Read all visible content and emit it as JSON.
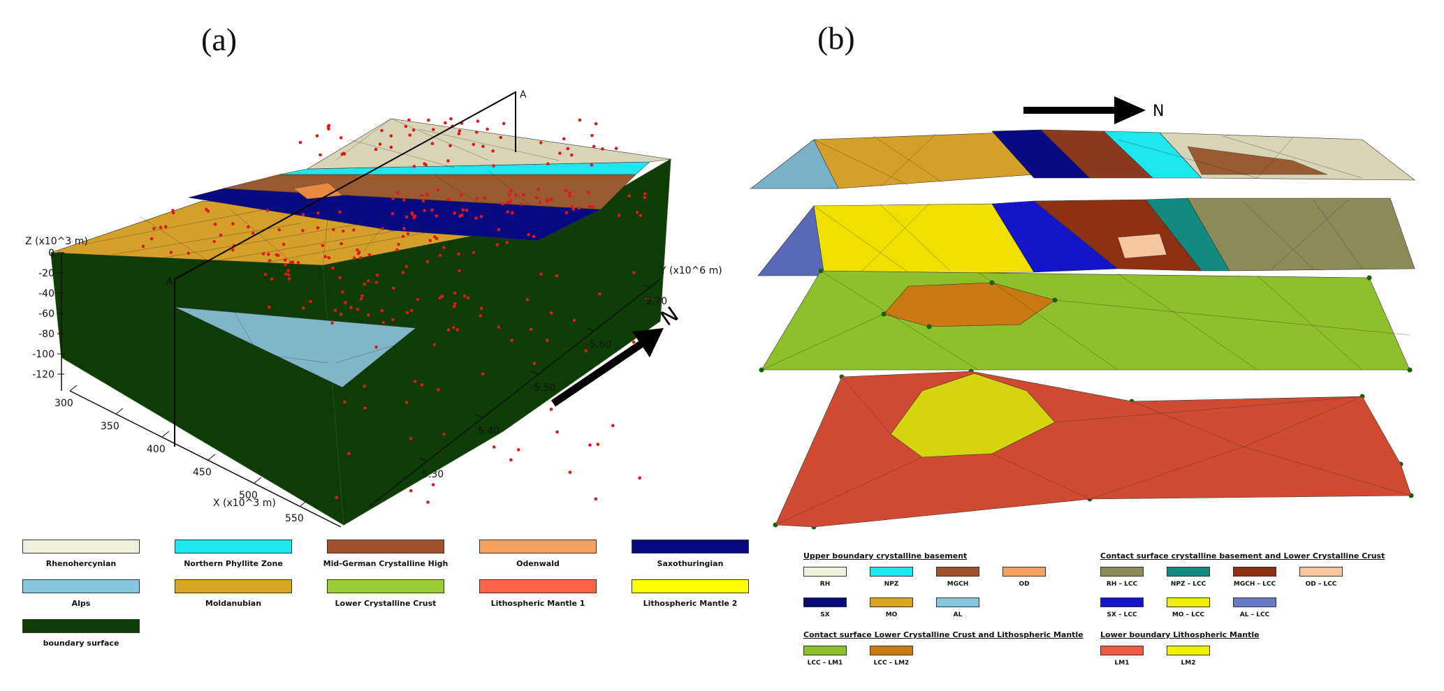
{
  "panels": {
    "a": "(a)",
    "b": "(b)"
  },
  "model_a": {
    "z_axis_title": "Z (x10^3 m)",
    "z_ticks": [
      "0",
      "-20",
      "-40",
      "-60",
      "-80",
      "-100",
      "-120"
    ],
    "x_axis_title": "X (x10^3 m)",
    "x_ticks": [
      "300",
      "350",
      "400",
      "450",
      "500",
      "550"
    ],
    "y_axis_title": "Y (x10^6 m)",
    "y_ticks": [
      "5.70",
      "5.60",
      "5.50",
      "5.40",
      "5.30"
    ],
    "section_start": "A",
    "section_end": "A'",
    "north": "N"
  },
  "model_b": {
    "north": "N"
  },
  "legend_a": [
    {
      "label": "Rhenohercynian",
      "color": "#f0f0dc"
    },
    {
      "label": "Northern Phyllite Zone",
      "color": "#1ee6ee"
    },
    {
      "label": "Mid-German Crystalline High",
      "color": "#a0522d"
    },
    {
      "label": "Odenwald",
      "color": "#f4a460"
    },
    {
      "label": "Saxothuringian",
      "color": "#0a0a80"
    },
    {
      "label": "Alps",
      "color": "#87c6de"
    },
    {
      "label": "Moldanubian",
      "color": "#daa520"
    },
    {
      "label": "Lower Crystalline Crust",
      "color": "#9acd32"
    },
    {
      "label": "Lithospheric Mantle 1",
      "color": "#ff6347"
    },
    {
      "label": "Lithospheric Mantle 2",
      "color": "#ffff00"
    },
    {
      "label": "boundary surface",
      "color": "#0d3d04"
    }
  ],
  "legend_b": {
    "groups": [
      {
        "heading": "Upper boundary crystalline basement",
        "items": [
          {
            "label": "RH",
            "color": "#f0f0dc"
          },
          {
            "label": "NPZ",
            "color": "#1ee6ee"
          },
          {
            "label": "MGCH",
            "color": "#a0522d"
          },
          {
            "label": "OD",
            "color": "#f4a460"
          },
          {
            "label": "SX",
            "color": "#0a0a80"
          },
          {
            "label": "MO",
            "color": "#daa520"
          },
          {
            "label": "AL",
            "color": "#87c6de"
          }
        ]
      },
      {
        "heading": "Contact surface crystalline basement  and Lower Crystalline Crust",
        "items": [
          {
            "label": "RH – LCC",
            "color": "#8b8b5a"
          },
          {
            "label": "NPZ – LCC",
            "color": "#138a80"
          },
          {
            "label": "MGCH – LCC",
            "color": "#8b3010"
          },
          {
            "label": "OD – LCC",
            "color": "#f5c6a0"
          },
          {
            "label": "SX – LCC",
            "color": "#1414c8"
          },
          {
            "label": "MO – LCC",
            "color": "#f0f000"
          },
          {
            "label": "AL – LCC",
            "color": "#6a78c8"
          }
        ]
      },
      {
        "heading": "Contact surface Lower Crystalline Crust and Lithospheric Mantle",
        "items": [
          {
            "label": "LCC – LM1",
            "color": "#8fbf2a"
          },
          {
            "label": "LCC – LM2",
            "color": "#c87a10"
          }
        ]
      },
      {
        "heading": "Lower boundary Lithospheric Mantle",
        "items": [
          {
            "label": "LM1",
            "color": "#f05a40"
          },
          {
            "label": "LM2",
            "color": "#f2f200"
          }
        ]
      }
    ]
  }
}
